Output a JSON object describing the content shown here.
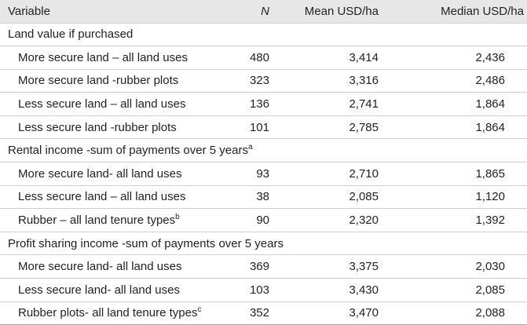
{
  "table": {
    "headers": {
      "variable": "Variable",
      "n": "N",
      "mean": "Mean USD/ha",
      "median": "Median USD/ha"
    },
    "sections": [
      {
        "title": "Land value if purchased",
        "title_sup": "",
        "rows": [
          {
            "label": "More secure land – all land uses",
            "sup": "",
            "n": "480",
            "mean": "3,414",
            "median": "2,436"
          },
          {
            "label": "More secure land -rubber plots",
            "sup": "",
            "n": "323",
            "mean": "3,316",
            "median": "2,486"
          },
          {
            "label": "Less secure land – all land uses",
            "sup": "",
            "n": "136",
            "mean": "2,741",
            "median": "1,864"
          },
          {
            "label": "Less secure land -rubber plots",
            "sup": "",
            "n": "101",
            "mean": "2,785",
            "median": "1,864"
          }
        ]
      },
      {
        "title": "Rental income -sum of payments over 5 years",
        "title_sup": "a",
        "rows": [
          {
            "label": "More secure land- all land uses",
            "sup": "",
            "n": "93",
            "mean": "2,710",
            "median": "1,865"
          },
          {
            "label": "Less secure land – all land uses",
            "sup": "",
            "n": "38",
            "mean": "2,085",
            "median": "1,120"
          },
          {
            "label": "Rubber – all land tenure types",
            "sup": "b",
            "n": "90",
            "mean": "2,320",
            "median": "1,392"
          }
        ]
      },
      {
        "title": "Profit sharing income -sum of payments over 5 years",
        "title_sup": "",
        "rows": [
          {
            "label": "More secure land- all land uses",
            "sup": "",
            "n": "369",
            "mean": "3,375",
            "median": "2,030"
          },
          {
            "label": "Less secure land- all land uses",
            "sup": "",
            "n": "103",
            "mean": "3,430",
            "median": "2,085"
          },
          {
            "label": "Rubber plots- all land tenure types",
            "sup": "c",
            "n": "352",
            "mean": "3,470",
            "median": "2,088"
          }
        ]
      }
    ]
  }
}
